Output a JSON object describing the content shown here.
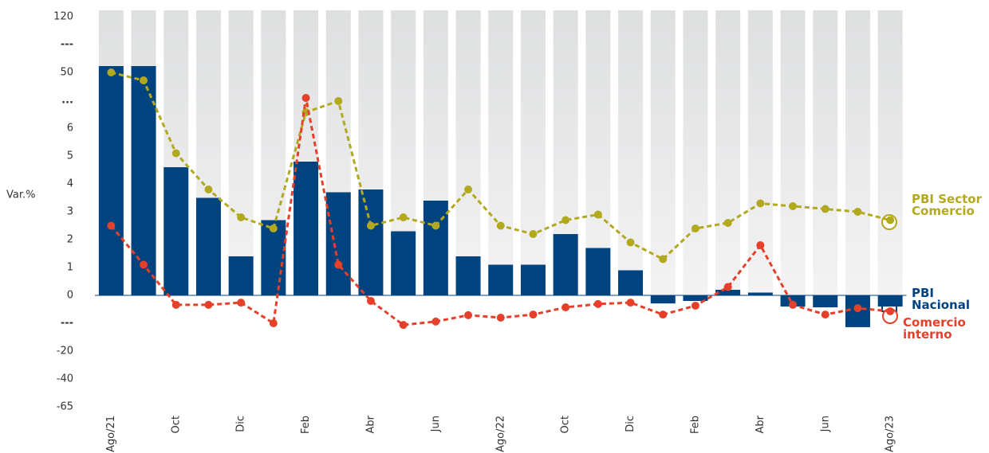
{
  "chart_data": {
    "type": "bar",
    "y_label": "Var.%",
    "categories": [
      "Ago/21",
      null,
      "Oct",
      null,
      "Dic",
      null,
      "Feb",
      null,
      "Abr",
      null,
      "Jun",
      null,
      "Ago/22",
      null,
      "Oct",
      null,
      "Dic",
      null,
      "Feb",
      null,
      "Abr",
      null,
      "Jun",
      null,
      "Ago/23"
    ],
    "yticks": [
      120,
      {
        "value": null,
        "label": "---"
      },
      50,
      {
        "value": null,
        "label": "..."
      },
      6,
      5,
      4,
      3,
      2,
      1,
      0,
      {
        "value": null,
        "label": "---"
      },
      -20,
      -40,
      -65
    ],
    "series": [
      {
        "name": "PBI Sector Comercio",
        "type": "line",
        "color": "#b3a91e",
        "values": [
          50,
          43.7,
          5.1,
          3.8,
          2.8,
          2.4,
          18.6,
          27.4,
          2.5,
          2.8,
          2.5,
          3.8,
          2.5,
          2.2,
          2.7,
          2.9,
          1.9,
          1.3,
          2.4,
          2.6,
          3.3,
          3.2,
          3.1,
          3.0,
          2.7
        ]
      },
      {
        "name": "PBI Nacional",
        "type": "bar",
        "color": "#00437f",
        "values": [
          58,
          58,
          4.6,
          3.5,
          1.4,
          2.7,
          4.8,
          3.7,
          3.8,
          2.3,
          3.4,
          1.4,
          1.1,
          1.1,
          2.2,
          1.7,
          0.9,
          -2.9,
          -2,
          0.2,
          0.1,
          -4,
          -4.3,
          -11.4,
          -4
        ]
      },
      {
        "name": "Comercio interno",
        "type": "line",
        "color": "#e4402a",
        "values": [
          2.5,
          1.1,
          -3.4,
          -3.4,
          -2.6,
          -10,
          29.9,
          1.1,
          -2,
          -10.6,
          -9.4,
          -7.1,
          -8,
          -6.9,
          -4.3,
          -3.1,
          -2.6,
          -6.9,
          -3.7,
          0.3,
          1.8,
          -3.4,
          -6.9,
          -4.6,
          -5.7
        ]
      }
    ]
  }
}
